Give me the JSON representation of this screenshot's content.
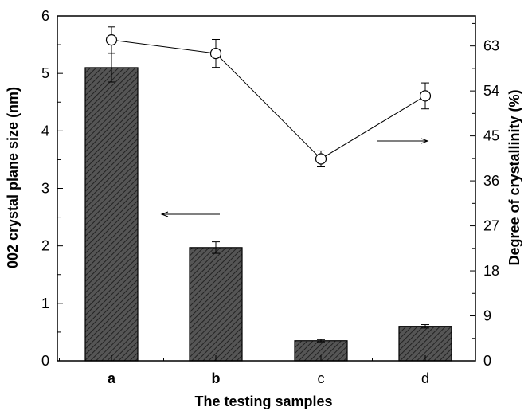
{
  "chart_data": {
    "type": "bar",
    "xlabel": "The testing samples",
    "ylabel_left": "002 crystal plane size (nm)",
    "ylabel_right": "Degree of crystallinity (%)",
    "categories": [
      "a",
      "b",
      "c",
      "d"
    ],
    "category_bold": [
      true,
      true,
      false,
      false
    ],
    "y_left": {
      "min": 0,
      "max": 6,
      "ticks": [
        0,
        1,
        2,
        3,
        4,
        5,
        6
      ]
    },
    "y_right": {
      "min": 0,
      "max": 69,
      "ticks": [
        0,
        9,
        18,
        27,
        36,
        45,
        54,
        63
      ]
    },
    "bars": {
      "axis": "left",
      "values": [
        5.1,
        1.97,
        0.35,
        0.6
      ],
      "errors": [
        0.25,
        0.1,
        0.02,
        0.03
      ],
      "fill": "#555555",
      "hatch": "#222222"
    },
    "line": {
      "axis": "right",
      "values": [
        64.2,
        61.5,
        40.4,
        53.0
      ],
      "errors": [
        2.6,
        2.8,
        1.6,
        2.6
      ],
      "marker": "open-circle",
      "color": "#000000"
    },
    "annotations": [
      {
        "type": "arrow",
        "direction": "left",
        "points_to_axis": "left",
        "near_category": "a"
      },
      {
        "type": "arrow",
        "direction": "right",
        "points_to_axis": "right",
        "near_category": "c"
      }
    ]
  }
}
